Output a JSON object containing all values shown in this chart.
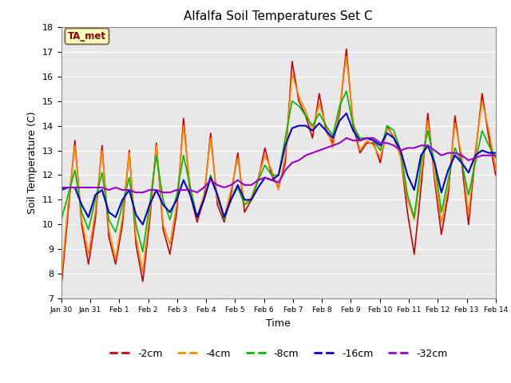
{
  "title": "Alfalfa Soil Temperatures Set C",
  "xlabel": "Time",
  "ylabel": "Soil Temperature (C)",
  "ylim": [
    7.0,
    18.0
  ],
  "yticks": [
    7.0,
    8.0,
    9.0,
    10.0,
    11.0,
    12.0,
    13.0,
    14.0,
    15.0,
    16.0,
    17.0,
    18.0
  ],
  "xtick_labels": [
    "Jan 30",
    "Jan 31",
    "Feb 1",
    "Feb 2",
    "Feb 3",
    "Feb 4",
    "Feb 5",
    "Feb 6",
    "Feb 7",
    "Feb 8",
    "Feb 9",
    "Feb 10",
    "Feb 11",
    "Feb 12",
    "Feb 13",
    "Feb 14"
  ],
  "annotation_text": "TA_met",
  "annotation_color": "#8B0000",
  "annotation_bg": "#FFFFC0",
  "bg_color": "#E8E8E8",
  "series": [
    {
      "label": "-2cm",
      "color": "#CC0000",
      "lw": 1.2,
      "y": [
        7.5,
        10.5,
        13.4,
        10.0,
        8.4,
        10.2,
        13.2,
        9.5,
        8.4,
        10.0,
        13.0,
        9.2,
        7.7,
        10.1,
        13.3,
        9.8,
        8.8,
        10.5,
        14.3,
        11.2,
        10.1,
        11.0,
        13.7,
        10.8,
        10.1,
        11.2,
        12.9,
        10.5,
        11.0,
        11.8,
        13.1,
        12.0,
        11.5,
        12.5,
        16.6,
        15.0,
        14.4,
        13.5,
        15.3,
        13.8,
        13.3,
        14.5,
        17.1,
        14.0,
        12.9,
        13.3,
        13.3,
        12.5,
        14.0,
        13.5,
        12.8,
        10.5,
        8.8,
        11.5,
        14.5,
        11.8,
        9.6,
        11.2,
        14.4,
        12.5,
        10.0,
        12.8,
        15.3,
        13.5,
        12.0
      ]
    },
    {
      "label": "-4cm",
      "color": "#FF8C00",
      "lw": 1.2,
      "y": [
        7.8,
        10.8,
        13.2,
        10.2,
        8.8,
        10.5,
        13.0,
        9.8,
        8.6,
        10.3,
        12.9,
        9.5,
        8.1,
        10.4,
        13.2,
        10.0,
        9.2,
        10.8,
        14.0,
        11.5,
        10.3,
        11.2,
        13.5,
        11.0,
        10.3,
        11.4,
        12.7,
        10.8,
        11.1,
        11.9,
        12.8,
        12.2,
        11.4,
        12.8,
        16.1,
        15.2,
        14.6,
        13.8,
        14.9,
        14.0,
        13.1,
        14.7,
        16.8,
        14.2,
        13.0,
        13.4,
        13.2,
        12.7,
        13.9,
        13.6,
        12.7,
        11.0,
        10.2,
        12.0,
        14.2,
        12.0,
        10.1,
        11.5,
        14.1,
        12.8,
        10.4,
        13.0,
        15.0,
        13.8,
        12.3
      ]
    },
    {
      "label": "-8cm",
      "color": "#00BB00",
      "lw": 1.2,
      "y": [
        10.2,
        11.2,
        12.2,
        10.5,
        9.8,
        11.0,
        12.1,
        10.2,
        9.7,
        10.8,
        11.9,
        10.0,
        8.9,
        10.8,
        12.8,
        11.0,
        10.2,
        11.2,
        12.8,
        11.5,
        10.3,
        11.0,
        12.0,
        11.2,
        10.2,
        11.0,
        11.5,
        10.8,
        11.0,
        11.8,
        12.4,
        12.0,
        12.0,
        13.5,
        15.0,
        14.8,
        14.4,
        14.0,
        14.5,
        14.0,
        13.6,
        14.8,
        15.4,
        14.0,
        13.5,
        13.5,
        13.4,
        13.0,
        14.0,
        13.8,
        13.0,
        11.2,
        10.3,
        12.5,
        13.8,
        12.5,
        10.5,
        11.8,
        13.1,
        12.5,
        11.2,
        12.5,
        13.8,
        13.2,
        12.7
      ]
    },
    {
      "label": "-16cm",
      "color": "#0000CC",
      "lw": 1.5,
      "y": [
        11.4,
        11.5,
        11.5,
        10.8,
        10.3,
        11.2,
        11.4,
        10.5,
        10.3,
        11.0,
        11.4,
        10.4,
        10.0,
        10.8,
        11.4,
        10.8,
        10.5,
        11.0,
        11.8,
        11.2,
        10.3,
        11.0,
        11.9,
        11.2,
        10.3,
        11.0,
        11.6,
        11.0,
        11.0,
        11.5,
        11.9,
        11.8,
        12.0,
        13.2,
        13.9,
        14.0,
        14.0,
        13.8,
        14.1,
        13.8,
        13.5,
        14.2,
        14.5,
        13.8,
        13.4,
        13.5,
        13.4,
        13.2,
        13.7,
        13.5,
        13.0,
        12.0,
        11.4,
        12.8,
        13.2,
        12.5,
        11.3,
        12.2,
        12.8,
        12.5,
        12.1,
        12.8,
        13.0,
        12.9,
        12.9
      ]
    },
    {
      "label": "-32cm",
      "color": "#9900CC",
      "lw": 1.5,
      "y": [
        11.5,
        11.5,
        11.5,
        11.5,
        11.5,
        11.5,
        11.5,
        11.4,
        11.5,
        11.4,
        11.4,
        11.3,
        11.3,
        11.4,
        11.4,
        11.3,
        11.3,
        11.4,
        11.4,
        11.4,
        11.3,
        11.5,
        11.8,
        11.6,
        11.5,
        11.6,
        11.8,
        11.6,
        11.6,
        11.8,
        11.9,
        11.8,
        11.7,
        12.2,
        12.5,
        12.6,
        12.8,
        12.9,
        13.0,
        13.1,
        13.2,
        13.3,
        13.5,
        13.4,
        13.4,
        13.5,
        13.5,
        13.3,
        13.3,
        13.2,
        13.0,
        13.1,
        13.1,
        13.2,
        13.2,
        13.0,
        12.8,
        12.9,
        12.9,
        12.8,
        12.6,
        12.7,
        12.8,
        12.8,
        12.8
      ]
    }
  ]
}
